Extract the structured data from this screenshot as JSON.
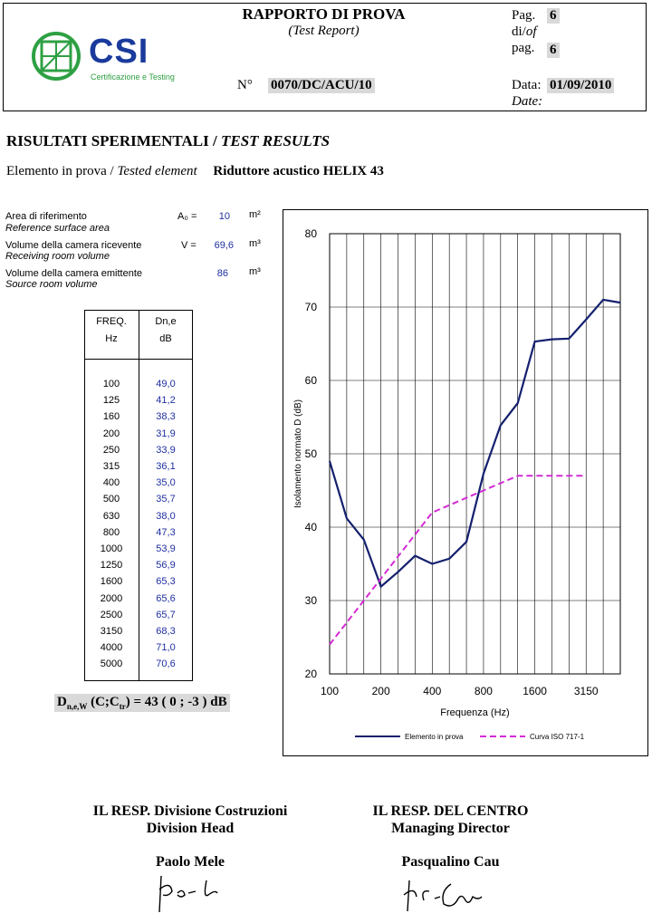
{
  "header": {
    "title": "RAPPORTO DI PROVA",
    "subtitle": "(Test Report)",
    "page_label_1": "Pag.",
    "page_value_1": "6",
    "page_label_2a": "di/",
    "page_label_2b": "of",
    "page_label_3": "pag.",
    "page_value_2": "6",
    "number_label": "N°",
    "number_value": "0070/DC/ACU/10",
    "date_label": "Data:",
    "date_value": "01/09/2010",
    "date_label_en": "Date:",
    "logo_text": "CSI",
    "logo_tagline": "Certificazione e Testing"
  },
  "section": {
    "title_it": "RISULTATI SPERIMENTALI / ",
    "title_en": "TEST RESULTS",
    "element_label_it": "Elemento in prova / ",
    "element_label_en": "Tested element",
    "element_value": "Riduttore acustico HELIX 43"
  },
  "params": [
    {
      "label": "Area di riferimento",
      "label_en": "Reference surface area",
      "symbol": "A₀ =",
      "value": "10",
      "unit": "m²"
    },
    {
      "label": "Volume della camera ricevente",
      "label_en": "Receiving room volume",
      "symbol": "V =",
      "value": "69,6",
      "unit": "m³"
    },
    {
      "label": "Volume della camera emittente",
      "label_en": "Source room volume",
      "symbol": "",
      "value": "86",
      "unit": "m³"
    }
  ],
  "table": {
    "col1_header": "FREQ.",
    "col1_unit": "Hz",
    "col2_header": "Dn,e",
    "col2_unit": "dB",
    "rows": [
      [
        "100",
        "49,0"
      ],
      [
        "125",
        "41,2"
      ],
      [
        "160",
        "38,3"
      ],
      [
        "200",
        "31,9"
      ],
      [
        "250",
        "33,9"
      ],
      [
        "315",
        "36,1"
      ],
      [
        "400",
        "35,0"
      ],
      [
        "500",
        "35,7"
      ],
      [
        "630",
        "38,0"
      ],
      [
        "800",
        "47,3"
      ],
      [
        "1000",
        "53,9"
      ],
      [
        "1250",
        "56,9"
      ],
      [
        "1600",
        "65,3"
      ],
      [
        "2000",
        "65,6"
      ],
      [
        "2500",
        "65,7"
      ],
      [
        "3150",
        "68,3"
      ],
      [
        "4000",
        "71,0"
      ],
      [
        "5000",
        "70,6"
      ]
    ]
  },
  "result": {
    "prefix": "D",
    "sub1": "n,e,W",
    "mid": " (C;C",
    "sub2": "tr",
    "suffix": ") = 43 ( 0 ; -3 ) dB"
  },
  "chart_data": {
    "type": "line",
    "x": [
      "100",
      "125",
      "160",
      "200",
      "250",
      "315",
      "400",
      "500",
      "630",
      "800",
      "1000",
      "1250",
      "1600",
      "2000",
      "2500",
      "3150",
      "4000",
      "5000"
    ],
    "x_tick_labels": [
      "100",
      "200",
      "400",
      "800",
      "1600",
      "3150"
    ],
    "ylabel": "Isolamento normato D (dB)",
    "xlabel": "Frequenza (Hz)",
    "ylim": [
      20,
      80
    ],
    "y_ticks": [
      "20",
      "30",
      "40",
      "50",
      "60",
      "70",
      "80"
    ],
    "grid": true,
    "legend_position": "bottom",
    "series": [
      {
        "name": "Elemento in prova",
        "color": "#14206e",
        "style": "solid",
        "values": [
          49.0,
          41.2,
          38.3,
          31.9,
          33.9,
          36.1,
          35.0,
          35.7,
          38.0,
          47.3,
          53.9,
          56.9,
          65.3,
          65.6,
          65.7,
          68.3,
          71.0,
          70.6
        ]
      },
      {
        "name": "Curva ISO 717-1",
        "color": "#d42ad6",
        "style": "dashed",
        "values": [
          24,
          27,
          30,
          33,
          36,
          39,
          42,
          43,
          44,
          45,
          46,
          47,
          47,
          47,
          47,
          47,
          null,
          null
        ]
      }
    ]
  },
  "signatures": {
    "left_title": "IL RESP. Divisione Costruzioni",
    "left_subtitle": "Division Head",
    "left_name": "Paolo Mele",
    "right_title": "IL RESP. DEL CENTRO",
    "right_subtitle": "Managing Director",
    "right_name": "Pasqualino Cau"
  }
}
